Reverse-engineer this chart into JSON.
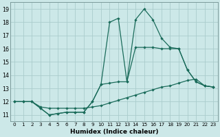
{
  "xlabel": "Humidex (Indice chaleur)",
  "bg_color": "#cce8e8",
  "grid_color": "#aacccc",
  "line_color": "#1a6b5a",
  "xlim": [
    -0.5,
    23.5
  ],
  "ylim": [
    10.5,
    19.5
  ],
  "xticks": [
    0,
    1,
    2,
    3,
    4,
    5,
    6,
    7,
    8,
    9,
    10,
    11,
    12,
    13,
    14,
    15,
    16,
    17,
    18,
    19,
    20,
    21,
    22,
    23
  ],
  "yticks": [
    11,
    12,
    13,
    14,
    15,
    16,
    17,
    18,
    19
  ],
  "line1_x": [
    0,
    1,
    2,
    3,
    4,
    5,
    6,
    7,
    8,
    9,
    10,
    11,
    12,
    13,
    14,
    15,
    16,
    17,
    18,
    19,
    20,
    21,
    22,
    23
  ],
  "line1_y": [
    12,
    12,
    12,
    11.5,
    11,
    11.1,
    11.2,
    11.2,
    11.2,
    12.0,
    13.3,
    18.0,
    18.3,
    13.5,
    18.2,
    19.0,
    18.2,
    16.8,
    16.1,
    16.0,
    14.4,
    13.5,
    13.2,
    13.1
  ],
  "line2_x": [
    0,
    1,
    2,
    3,
    4,
    5,
    6,
    7,
    8,
    9,
    10,
    11,
    12,
    13,
    14,
    15,
    16,
    17,
    18,
    19,
    20,
    21,
    22,
    23
  ],
  "line2_y": [
    12,
    12,
    12,
    11.5,
    11,
    11.1,
    11.2,
    11.2,
    11.2,
    12.0,
    13.3,
    13.4,
    13.5,
    13.5,
    16.1,
    16.1,
    16.1,
    16.0,
    16.0,
    16.0,
    14.4,
    13.5,
    13.2,
    13.1
  ],
  "line3_x": [
    0,
    1,
    2,
    3,
    4,
    5,
    6,
    7,
    8,
    9,
    10,
    11,
    12,
    13,
    14,
    15,
    16,
    17,
    18,
    19,
    20,
    21,
    22,
    23
  ],
  "line3_y": [
    12,
    12,
    12,
    11.6,
    11.5,
    11.5,
    11.5,
    11.5,
    11.5,
    11.6,
    11.7,
    11.9,
    12.1,
    12.3,
    12.5,
    12.7,
    12.9,
    13.1,
    13.2,
    13.4,
    13.6,
    13.7,
    13.2,
    13.1
  ]
}
